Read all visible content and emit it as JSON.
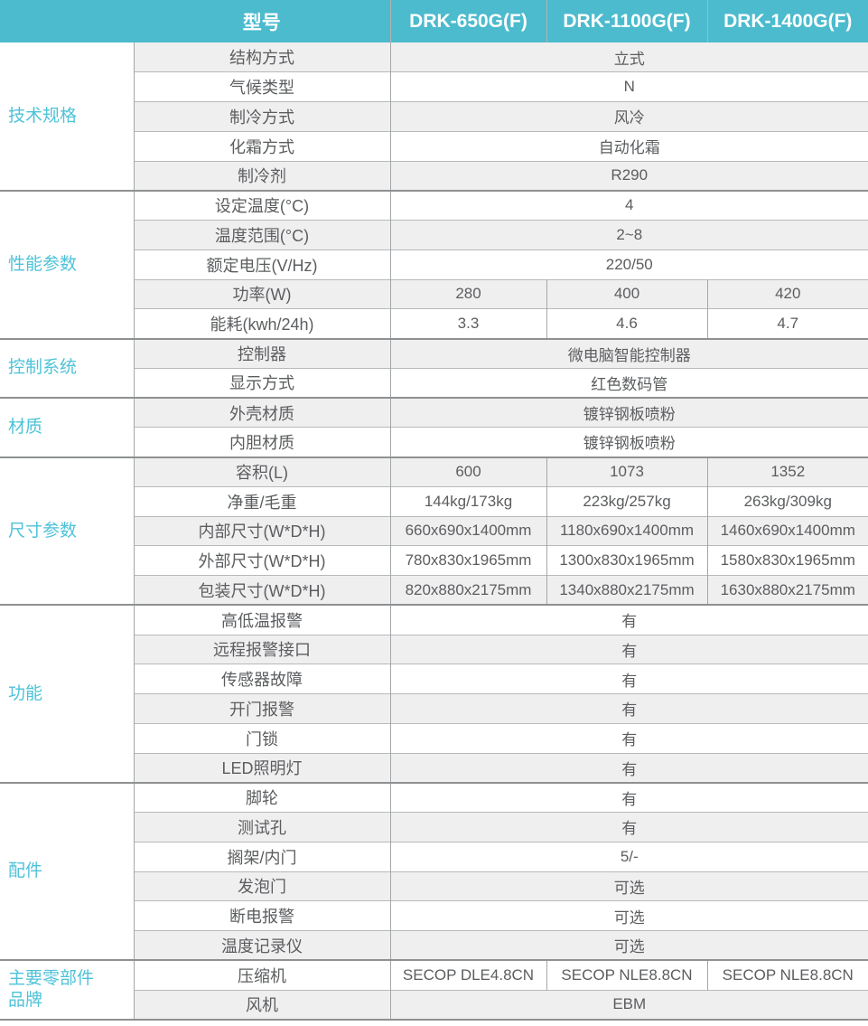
{
  "colors": {
    "header_bg": "#4cbbcd",
    "header_text": "#ffffff",
    "category_text": "#4ec2d8",
    "cell_text": "#5b5d5f",
    "alt_row_bg": "#f0eff0",
    "row_border": "#b6b9ba",
    "section_border": "#8e9091",
    "divider": "#a3a7a9"
  },
  "table": {
    "header": {
      "model_label": "型号",
      "models": [
        "DRK-650G(F)",
        "DRK-1100G(F)",
        "DRK-1400G(F)"
      ]
    },
    "sections": [
      {
        "category": "技术规格",
        "rows": [
          {
            "label": "结构方式",
            "values": [
              "立式"
            ]
          },
          {
            "label": "气候类型",
            "values": [
              "N"
            ]
          },
          {
            "label": "制冷方式",
            "values": [
              "风冷"
            ]
          },
          {
            "label": "化霜方式",
            "values": [
              "自动化霜"
            ]
          },
          {
            "label": "制冷剂",
            "values": [
              "R290"
            ]
          }
        ]
      },
      {
        "category": "性能参数",
        "rows": [
          {
            "label": "设定温度(°C)",
            "values": [
              "4"
            ]
          },
          {
            "label": "温度范围(°C)",
            "values": [
              "2~8"
            ]
          },
          {
            "label": "额定电压(V/Hz)",
            "values": [
              "220/50"
            ]
          },
          {
            "label": "功率(W)",
            "values": [
              "280",
              "400",
              "420"
            ]
          },
          {
            "label": "能耗(kwh/24h)",
            "values": [
              "3.3",
              "4.6",
              "4.7"
            ]
          }
        ]
      },
      {
        "category": "控制系统",
        "rows": [
          {
            "label": "控制器",
            "values": [
              "微电脑智能控制器"
            ]
          },
          {
            "label": "显示方式",
            "values": [
              "红色数码管"
            ]
          }
        ]
      },
      {
        "category": "材质",
        "rows": [
          {
            "label": "外壳材质",
            "values": [
              "镀锌钢板喷粉"
            ]
          },
          {
            "label": "内胆材质",
            "values": [
              "镀锌钢板喷粉"
            ]
          }
        ]
      },
      {
        "category": "尺寸参数",
        "rows": [
          {
            "label": "容积(L)",
            "values": [
              "600",
              "1073",
              "1352"
            ]
          },
          {
            "label": "净重/毛重",
            "values": [
              "144kg/173kg",
              "223kg/257kg",
              "263kg/309kg"
            ]
          },
          {
            "label": "内部尺寸(W*D*H)",
            "values": [
              "660x690x1400mm",
              "1180x690x1400mm",
              "1460x690x1400mm"
            ]
          },
          {
            "label": "外部尺寸(W*D*H)",
            "values": [
              "780x830x1965mm",
              "1300x830x1965mm",
              "1580x830x1965mm"
            ]
          },
          {
            "label": "包装尺寸(W*D*H)",
            "values": [
              "820x880x2175mm",
              "1340x880x2175mm",
              "1630x880x2175mm"
            ]
          }
        ]
      },
      {
        "category": "功能",
        "rows": [
          {
            "label": "高低温报警",
            "values": [
              "有"
            ]
          },
          {
            "label": "远程报警接口",
            "values": [
              "有"
            ]
          },
          {
            "label": "传感器故障",
            "values": [
              "有"
            ]
          },
          {
            "label": "开门报警",
            "values": [
              "有"
            ]
          },
          {
            "label": "门锁",
            "values": [
              "有"
            ]
          },
          {
            "label": "LED照明灯",
            "values": [
              "有"
            ]
          }
        ]
      },
      {
        "category": "配件",
        "rows": [
          {
            "label": "脚轮",
            "values": [
              "有"
            ]
          },
          {
            "label": "测试孔",
            "values": [
              "有"
            ]
          },
          {
            "label": "搁架/内门",
            "values": [
              "5/-"
            ]
          },
          {
            "label": "发泡门",
            "values": [
              "可选"
            ]
          },
          {
            "label": "断电报警",
            "values": [
              "可选"
            ]
          },
          {
            "label": "温度记录仪",
            "values": [
              "可选"
            ]
          }
        ]
      },
      {
        "category": "主要零部件\n品牌",
        "rows": [
          {
            "label": "压缩机",
            "values": [
              "SECOP DLE4.8CN",
              "SECOP NLE8.8CN",
              "SECOP NLE8.8CN"
            ]
          },
          {
            "label": "风机",
            "values": [
              "EBM"
            ]
          }
        ]
      }
    ]
  }
}
